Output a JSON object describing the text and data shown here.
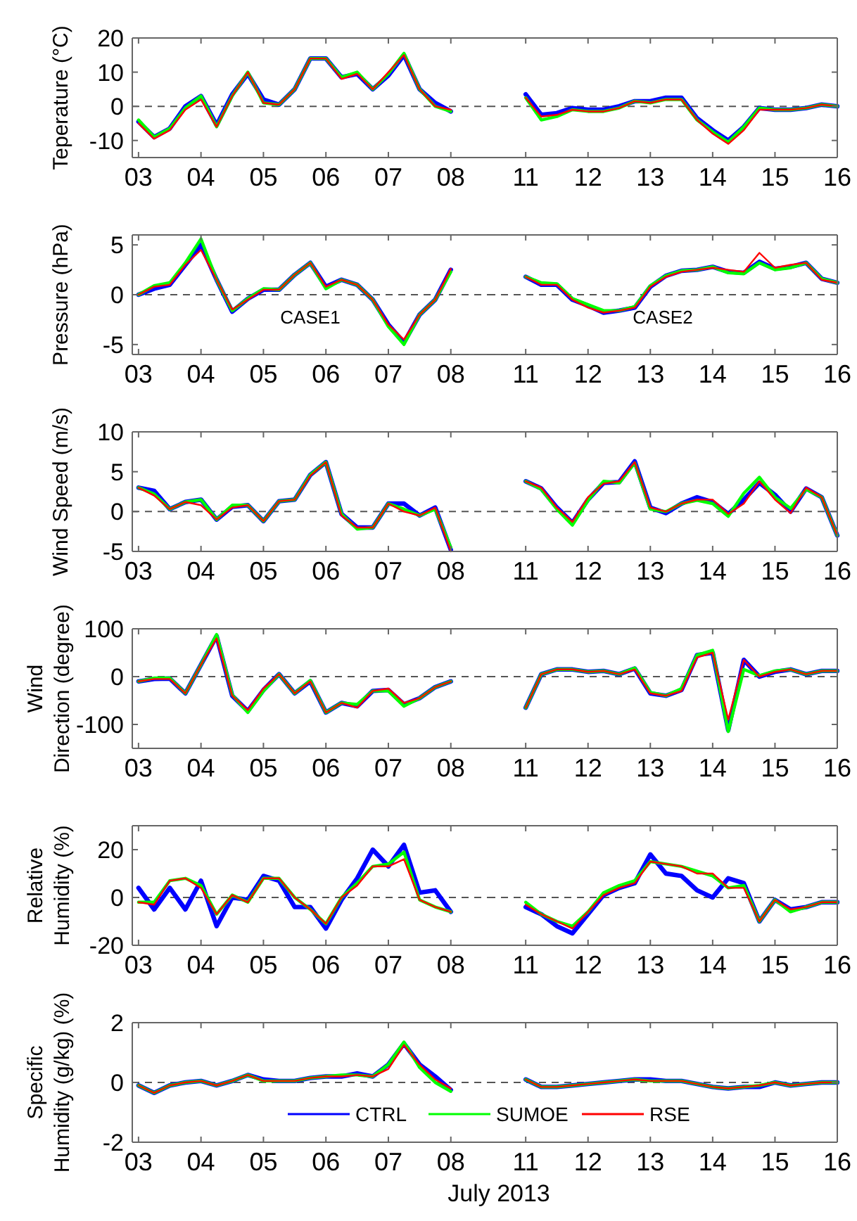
{
  "chart_data": [
    {
      "type": "line",
      "ylabel": "Teperature (°C)",
      "x": [
        3,
        3.25,
        3.5,
        3.75,
        4,
        4.25,
        4.5,
        4.75,
        5,
        5.25,
        5.5,
        5.75,
        6,
        6.25,
        6.5,
        6.75,
        7,
        7.25,
        7.5,
        7.75,
        8
      ],
      "xlim": [
        2.9,
        8.6
      ],
      "xticks": [
        {
          "value": 3,
          "label": "03"
        },
        {
          "value": 4,
          "label": "04"
        },
        {
          "value": 5,
          "label": "05"
        },
        {
          "value": 6,
          "label": "06"
        },
        {
          "value": 7,
          "label": "07"
        },
        {
          "value": 8,
          "label": "08"
        }
      ],
      "ylim": [
        -15,
        20
      ],
      "yticks": [
        -10,
        0,
        10,
        20
      ],
      "ref_lines": [
        {
          "axis": "y",
          "value": 0,
          "line_style": "dashed",
          "color": "#555555"
        }
      ],
      "series": [
        {
          "color": "#0000ff",
          "values": [
            -4.5,
            -9,
            -6.5,
            0,
            3,
            -5.5,
            3.5,
            9.5,
            2,
            0.5,
            5,
            14,
            14,
            8.5,
            9.5,
            5,
            9,
            15,
            5,
            1,
            -1.5
          ]
        },
        {
          "color": "#00ff00",
          "values": [
            -4,
            -9,
            -6.5,
            -0.5,
            3,
            -6,
            3,
            10,
            1,
            0.5,
            5,
            14,
            14,
            8.5,
            10,
            5,
            9.5,
            15.5,
            5,
            0,
            -1.5
          ]
        },
        {
          "color": "#ff0000",
          "values": [
            -5,
            -9.5,
            -7,
            -1,
            2,
            -6,
            3,
            10,
            1,
            0.5,
            5,
            14,
            14,
            8,
            9.5,
            5,
            10,
            15,
            5,
            0,
            -1
          ]
        }
      ]
    },
    {
      "type": "line",
      "x": [
        11,
        11.25,
        11.5,
        11.75,
        12,
        12.25,
        12.5,
        12.75,
        13,
        13.25,
        13.5,
        13.75,
        14,
        14.25,
        14.5,
        14.75,
        15,
        15.25,
        15.5,
        15.75,
        16
      ],
      "xlim": [
        10.4,
        16
      ],
      "xticks": [
        11,
        12,
        13,
        14,
        15,
        16
      ],
      "ylim": [
        -15,
        20
      ],
      "yticks": [
        -10,
        0,
        10,
        20
      ],
      "tick_labels": "x",
      "ref_lines": [
        {
          "axis": "y",
          "value": 0,
          "line_style": "dashed",
          "color": "#555555"
        }
      ],
      "series": [
        {
          "color": "#0000ff",
          "values": [
            3.5,
            -2.5,
            -2,
            -0.5,
            -1,
            -1,
            0,
            1.5,
            1.5,
            2.5,
            2.5,
            -3.5,
            -7,
            -10,
            -6,
            -0.5,
            -1,
            -1,
            -0.5,
            0.5,
            0
          ]
        },
        {
          "color": "#00ff00",
          "values": [
            2.5,
            -4,
            -3,
            -1,
            -1.5,
            -1.5,
            -0.5,
            1.5,
            1,
            2,
            2,
            -4,
            -7.5,
            -10.5,
            -6,
            -0.5,
            -1,
            -1,
            -0.5,
            0.5,
            0
          ]
        },
        {
          "color": "#ff0000",
          "values": [
            2.5,
            -3,
            -2.5,
            -1,
            -1.5,
            -1.5,
            -0.5,
            1.5,
            1,
            2,
            2,
            -4,
            -8,
            -11,
            -7,
            -1,
            -1,
            -1,
            -0.5,
            0.5,
            0
          ]
        }
      ]
    },
    {
      "type": "line",
      "ylabel": "Pressure (hPa)",
      "annotations": [
        "CASE1"
      ],
      "x": [
        3,
        3.25,
        3.5,
        3.75,
        4,
        4.25,
        4.5,
        4.75,
        5,
        5.25,
        5.5,
        5.75,
        6,
        6.25,
        6.5,
        6.75,
        7,
        7.25,
        7.5,
        7.75,
        8
      ],
      "xlim": [
        2.9,
        8.6
      ],
      "xticks": [
        {
          "value": 3,
          "label": "03"
        },
        {
          "value": 4,
          "label": "04"
        },
        {
          "value": 5,
          "label": "05"
        },
        {
          "value": 6,
          "label": "06"
        },
        {
          "value": 7,
          "label": "07"
        },
        {
          "value": 8,
          "label": "08"
        }
      ],
      "ylim": [
        -6,
        6
      ],
      "yticks": [
        -5,
        0,
        5
      ],
      "ref_lines": [
        {
          "axis": "y",
          "value": 0,
          "line_style": "dashed",
          "color": "#555555"
        }
      ],
      "series": [
        {
          "color": "#0000ff",
          "values": [
            0,
            0.6,
            1,
            3,
            5,
            1.5,
            -1.7,
            -0.4,
            0.5,
            0.5,
            2,
            3.2,
            0.8,
            1.5,
            1,
            -0.5,
            -3,
            -4.8,
            -2,
            -0.5,
            2.5
          ]
        },
        {
          "color": "#00ff00",
          "values": [
            0,
            0.9,
            1.2,
            3.2,
            5.6,
            1.5,
            -1.6,
            -0.4,
            0.6,
            0.5,
            2,
            3.2,
            0.6,
            1.5,
            1,
            -0.5,
            -3.2,
            -5,
            -2,
            -0.5,
            2.3
          ]
        },
        {
          "color": "#ff0000",
          "values": [
            0,
            0.8,
            1,
            3,
            4.5,
            1.5,
            -1.5,
            -0.5,
            0.5,
            0.5,
            2,
            3.2,
            0.8,
            1.5,
            1,
            -0.5,
            -3,
            -4.5,
            -2,
            -0.5,
            2.6
          ]
        }
      ]
    },
    {
      "type": "line",
      "annotations": [
        "CASE2"
      ],
      "x": [
        11,
        11.25,
        11.5,
        11.75,
        12,
        12.25,
        12.5,
        12.75,
        13,
        13.25,
        13.5,
        13.75,
        14,
        14.25,
        14.5,
        14.75,
        15,
        15.25,
        15.5,
        15.75,
        16
      ],
      "xlim": [
        10.4,
        16
      ],
      "xticks": [
        11,
        12,
        13,
        14,
        15,
        16
      ],
      "ylim": [
        -6,
        6
      ],
      "yticks": [
        -5,
        0,
        5
      ],
      "tick_labels": "x",
      "ref_lines": [
        {
          "axis": "y",
          "value": 0,
          "line_style": "dashed",
          "color": "#555555"
        }
      ],
      "series": [
        {
          "color": "#0000ff",
          "values": [
            1.8,
            1,
            1,
            -0.5,
            -1.1,
            -1.8,
            -1.6,
            -1.3,
            0.8,
            1.9,
            2.4,
            2.5,
            2.8,
            2.3,
            2.2,
            3.3,
            2.6,
            2.8,
            3.2,
            1.6,
            1.2
          ]
        },
        {
          "color": "#00ff00",
          "values": [
            1.8,
            1.2,
            1.1,
            -0.4,
            -1,
            -1.6,
            -1.6,
            -1.2,
            0.9,
            1.9,
            2.4,
            2.5,
            2.8,
            2.2,
            2.1,
            3.2,
            2.5,
            2.7,
            3.2,
            1.6,
            1.2
          ]
        },
        {
          "color": "#ff0000",
          "values": [
            1.8,
            1,
            1,
            -0.5,
            -1.3,
            -1.8,
            -1.6,
            -1.3,
            0.8,
            1.8,
            2.3,
            2.5,
            2.7,
            2.5,
            2.3,
            4.2,
            2.7,
            3,
            3.2,
            1.5,
            1.2
          ]
        }
      ]
    },
    {
      "type": "line",
      "ylabel": "Wind Speed (m/s)",
      "x": [
        3,
        3.25,
        3.5,
        3.75,
        4,
        4.25,
        4.5,
        4.75,
        5,
        5.25,
        5.5,
        5.75,
        6,
        6.25,
        6.5,
        6.75,
        7,
        7.25,
        7.5,
        7.75,
        8
      ],
      "xlim": [
        2.9,
        8.6
      ],
      "xticks": [
        {
          "value": 3,
          "label": "03"
        },
        {
          "value": 4,
          "label": "04"
        },
        {
          "value": 5,
          "label": "05"
        },
        {
          "value": 6,
          "label": "06"
        },
        {
          "value": 7,
          "label": "07"
        },
        {
          "value": 8,
          "label": "08"
        }
      ],
      "ylim": [
        -5,
        10
      ],
      "yticks": [
        -5,
        0,
        5,
        10
      ],
      "ref_lines": [
        {
          "axis": "y",
          "value": 0,
          "line_style": "dashed",
          "color": "#555555"
        }
      ],
      "series": [
        {
          "color": "#0000ff",
          "values": [
            3,
            2.6,
            0.3,
            1.2,
            1.5,
            -1,
            0.6,
            0.8,
            -1.2,
            1.3,
            1.5,
            4.6,
            6.2,
            -0.3,
            -2,
            -2,
            1,
            1,
            -0.5,
            0.5,
            -4.8
          ]
        },
        {
          "color": "#00ff00",
          "values": [
            3,
            2.2,
            0.3,
            1.2,
            1.5,
            -1,
            0.8,
            0.8,
            -1.2,
            1.3,
            1.5,
            4.6,
            6.2,
            -0.3,
            -2.2,
            -2,
            1,
            0.3,
            -0.5,
            0.3,
            -4.5
          ]
        },
        {
          "color": "#ff0000",
          "values": [
            3,
            2,
            0.3,
            1.2,
            0.8,
            -1,
            0.5,
            0.8,
            -1.2,
            1.3,
            1.5,
            4.5,
            6.2,
            -0.5,
            -2,
            -2,
            1,
            0,
            -0.5,
            0.5,
            -5
          ]
        }
      ]
    },
    {
      "type": "line",
      "x": [
        11,
        11.25,
        11.5,
        11.75,
        12,
        12.25,
        12.5,
        12.75,
        13,
        13.25,
        13.5,
        13.75,
        14,
        14.25,
        14.5,
        14.75,
        15,
        15.25,
        15.5,
        15.75,
        16
      ],
      "xlim": [
        10.4,
        16
      ],
      "xticks": [
        11,
        12,
        13,
        14,
        15,
        16
      ],
      "ylim": [
        -5,
        10
      ],
      "yticks": [
        -5,
        0,
        5,
        10
      ],
      "tick_labels": "x",
      "ref_lines": [
        {
          "axis": "y",
          "value": 0,
          "line_style": "dashed",
          "color": "#555555"
        }
      ],
      "series": [
        {
          "color": "#0000ff",
          "values": [
            3.8,
            2.9,
            0.5,
            -1.4,
            1.5,
            3.6,
            3.7,
            6.3,
            0.5,
            -0.2,
            1,
            1.8,
            1.2,
            -0.3,
            1.5,
            3.6,
            2.1,
            0,
            2.9,
            1.8,
            -3
          ]
        },
        {
          "color": "#00ff00",
          "values": [
            3.8,
            2.8,
            0.3,
            -1.7,
            1.4,
            3.8,
            3.6,
            6.1,
            0.3,
            0,
            1,
            1.4,
            1,
            -0.6,
            2.3,
            4.3,
            1.8,
            0.4,
            2.8,
            1.8,
            -3
          ]
        },
        {
          "color": "#ff0000",
          "values": [
            3.8,
            3,
            0.5,
            -1.3,
            1.8,
            3.5,
            3.8,
            6.2,
            0.5,
            0,
            1,
            1.5,
            1.5,
            -0.3,
            1,
            3.8,
            1.5,
            -0.2,
            3,
            1.8,
            -3
          ]
        }
      ]
    },
    {
      "type": "line",
      "ylabel": "Wind\nDirection (degree)",
      "x": [
        3,
        3.25,
        3.5,
        3.75,
        4,
        4.25,
        4.5,
        4.75,
        5,
        5.25,
        5.5,
        5.75,
        6,
        6.25,
        6.5,
        6.75,
        7,
        7.25,
        7.5,
        7.75,
        8
      ],
      "xlim": [
        2.9,
        8.6
      ],
      "xticks": [
        {
          "value": 3,
          "label": "03"
        },
        {
          "value": 4,
          "label": "04"
        },
        {
          "value": 5,
          "label": "05"
        },
        {
          "value": 6,
          "label": "06"
        },
        {
          "value": 7,
          "label": "07"
        },
        {
          "value": 8,
          "label": "08"
        }
      ],
      "ylim": [
        -150,
        100
      ],
      "yticks": [
        -100,
        0,
        100
      ],
      "ref_lines": [
        {
          "axis": "y",
          "value": 0,
          "line_style": "dashed",
          "color": "#555555"
        }
      ],
      "series": [
        {
          "color": "#0000ff",
          "values": [
            -10,
            -5,
            -4,
            -35,
            25,
            85,
            -40,
            -72,
            -28,
            5,
            -35,
            -10,
            -75,
            -55,
            -62,
            -30,
            -28,
            -58,
            -45,
            -22,
            -10
          ]
        },
        {
          "color": "#00ff00",
          "values": [
            -10,
            -3,
            -3,
            -35,
            25,
            88,
            -38,
            -75,
            -30,
            5,
            -35,
            -8,
            -75,
            -55,
            -58,
            -30,
            -30,
            -62,
            -45,
            -22,
            -10
          ]
        },
        {
          "color": "#ff0000",
          "values": [
            -10,
            -5,
            -5,
            -35,
            25,
            80,
            -40,
            -70,
            -25,
            5,
            -35,
            -10,
            -75,
            -55,
            -65,
            -30,
            -25,
            -55,
            -45,
            -22,
            -10
          ]
        }
      ]
    },
    {
      "type": "line",
      "x": [
        11,
        11.25,
        11.5,
        11.75,
        12,
        12.25,
        12.5,
        12.75,
        13,
        13.25,
        13.5,
        13.75,
        14,
        14.25,
        14.5,
        14.75,
        15,
        15.25,
        15.5,
        15.75,
        16
      ],
      "xlim": [
        10.4,
        16
      ],
      "xticks": [
        11,
        12,
        13,
        14,
        15,
        16
      ],
      "ylim": [
        -150,
        100
      ],
      "yticks": [
        -100,
        0,
        100
      ],
      "tick_labels": "x",
      "ref_lines": [
        {
          "axis": "y",
          "value": 0,
          "line_style": "dashed",
          "color": "#555555"
        }
      ],
      "series": [
        {
          "color": "#0000ff",
          "values": [
            -65,
            5,
            15,
            15,
            10,
            12,
            5,
            17,
            -35,
            -40,
            -28,
            45,
            50,
            -112,
            35,
            0,
            10,
            15,
            5,
            12,
            12
          ]
        },
        {
          "color": "#00ff00",
          "values": [
            -65,
            5,
            15,
            15,
            10,
            12,
            5,
            18,
            -33,
            -40,
            -25,
            45,
            55,
            -115,
            15,
            2,
            12,
            15,
            5,
            12,
            12
          ]
        },
        {
          "color": "#ff0000",
          "values": [
            -65,
            5,
            15,
            15,
            10,
            12,
            5,
            15,
            -35,
            -40,
            -30,
            40,
            50,
            -90,
            35,
            0,
            10,
            15,
            5,
            12,
            12
          ]
        }
      ]
    },
    {
      "type": "line",
      "ylabel": "Relative\nHumidity (%)",
      "x": [
        3,
        3.25,
        3.5,
        3.75,
        4,
        4.25,
        4.5,
        4.75,
        5,
        5.25,
        5.5,
        5.75,
        6,
        6.25,
        6.5,
        6.75,
        7,
        7.25,
        7.5,
        7.75,
        8
      ],
      "xlim": [
        2.9,
        8.6
      ],
      "xticks": [
        {
          "value": 3,
          "label": "03"
        },
        {
          "value": 4,
          "label": "04"
        },
        {
          "value": 5,
          "label": "05"
        },
        {
          "value": 6,
          "label": "06"
        },
        {
          "value": 7,
          "label": "07"
        },
        {
          "value": 8,
          "label": "08"
        }
      ],
      "ylim": [
        -20,
        30
      ],
      "yticks": [
        -20,
        0,
        20
      ],
      "ref_lines": [
        {
          "axis": "y",
          "value": 0,
          "line_style": "dashed",
          "color": "#555555"
        }
      ],
      "series": [
        {
          "color": "#0000ff",
          "values": [
            4,
            -5,
            4,
            -5,
            7,
            -12,
            0,
            -1,
            9,
            7,
            -4,
            -4,
            -13,
            -1,
            8,
            20,
            13,
            22,
            2,
            3,
            -6
          ]
        },
        {
          "color": "#00ff00",
          "values": [
            -2,
            -2,
            7,
            8,
            5,
            -7,
            1,
            -2,
            8,
            8,
            0,
            -5,
            -11,
            0,
            6,
            13,
            14,
            19,
            -1,
            -4,
            -6
          ]
        },
        {
          "color": "#ff0000",
          "values": [
            -2,
            -3,
            7,
            8,
            4,
            -7,
            1,
            -2,
            8,
            8,
            0,
            -5,
            -11,
            0,
            5,
            13,
            13,
            16,
            -1,
            -4,
            -6
          ]
        }
      ]
    },
    {
      "type": "line",
      "x": [
        11,
        11.25,
        11.5,
        11.75,
        12,
        12.25,
        12.5,
        12.75,
        13,
        13.25,
        13.5,
        13.75,
        14,
        14.25,
        14.5,
        14.75,
        15,
        15.25,
        15.5,
        15.75,
        16
      ],
      "xlim": [
        10.4,
        16
      ],
      "xticks": [
        11,
        12,
        13,
        14,
        15,
        16
      ],
      "ylim": [
        -20,
        30
      ],
      "yticks": [
        -20,
        0,
        20
      ],
      "tick_labels": "x",
      "ref_lines": [
        {
          "axis": "y",
          "value": 0,
          "line_style": "dashed",
          "color": "#555555"
        }
      ],
      "series": [
        {
          "color": "#0000ff",
          "values": [
            -4,
            -7,
            -12,
            -15,
            -7,
            1,
            4,
            6,
            18,
            10,
            9,
            3,
            0,
            8,
            6,
            -10,
            -1,
            -5,
            -4,
            -2,
            -2
          ]
        },
        {
          "color": "#00ff00",
          "values": [
            -2,
            -7,
            -10,
            -12,
            -6,
            2,
            5,
            7,
            15,
            14,
            13,
            11,
            9,
            4,
            5,
            -10,
            -1,
            -6,
            -4,
            -2,
            -2
          ]
        },
        {
          "color": "#ff0000",
          "values": [
            -3,
            -7,
            -10,
            -13,
            -6,
            1,
            4,
            6,
            15,
            14,
            13,
            10,
            10,
            4,
            4,
            -10,
            -1,
            -5,
            -4,
            -2,
            -2
          ]
        }
      ]
    },
    {
      "type": "line",
      "ylabel": "Specific\nHumidity (g/kg) (%)",
      "xlabel": "July 2013",
      "legend": "bottom",
      "x": [
        3,
        3.25,
        3.5,
        3.75,
        4,
        4.25,
        4.5,
        4.75,
        5,
        5.25,
        5.5,
        5.75,
        6,
        6.25,
        6.5,
        6.75,
        7,
        7.25,
        7.5,
        7.75,
        8
      ],
      "xlim": [
        2.9,
        8.6
      ],
      "xticks": [
        {
          "value": 3,
          "label": "03"
        },
        {
          "value": 4,
          "label": "04"
        },
        {
          "value": 5,
          "label": "05"
        },
        {
          "value": 6,
          "label": "06"
        },
        {
          "value": 7,
          "label": "07"
        },
        {
          "value": 8,
          "label": "08"
        }
      ],
      "ylim": [
        -2,
        2
      ],
      "yticks": [
        -2,
        0,
        2
      ],
      "ref_lines": [
        {
          "axis": "y",
          "value": 0,
          "line_style": "dashed",
          "color": "#555555"
        }
      ],
      "series": [
        {
          "name": "CTRL",
          "color": "#0000ff",
          "values": [
            -0.1,
            -0.35,
            -0.1,
            0,
            0.05,
            -0.1,
            0.05,
            0.25,
            0.1,
            0.05,
            0.05,
            0.15,
            0.2,
            0.2,
            0.3,
            0.2,
            0.6,
            1.3,
            0.6,
            0.2,
            -0.25
          ]
        },
        {
          "name": "SUMOE",
          "color": "#00ff00",
          "values": [
            -0.1,
            -0.35,
            -0.1,
            0,
            0.05,
            -0.1,
            0.05,
            0.25,
            0.05,
            0.05,
            0.05,
            0.15,
            0.2,
            0.25,
            0.25,
            0.2,
            0.6,
            1.35,
            0.5,
            0,
            -0.3
          ]
        },
        {
          "name": "RSE",
          "color": "#ff0000",
          "values": [
            -0.1,
            -0.35,
            -0.1,
            0,
            0.05,
            -0.1,
            0.05,
            0.25,
            0.05,
            0.05,
            0.05,
            0.15,
            0.2,
            0.2,
            0.25,
            0.2,
            0.45,
            1.25,
            0.6,
            0.1,
            -0.2
          ]
        }
      ]
    },
    {
      "type": "line",
      "x": [
        11,
        11.25,
        11.5,
        11.75,
        12,
        12.25,
        12.5,
        12.75,
        13,
        13.25,
        13.5,
        13.75,
        14,
        14.25,
        14.5,
        14.75,
        15,
        15.25,
        15.5,
        15.75,
        16
      ],
      "xlim": [
        10.4,
        16
      ],
      "xticks": [
        11,
        12,
        13,
        14,
        15,
        16
      ],
      "ylim": [
        -2,
        2
      ],
      "yticks": [
        -2,
        0,
        2
      ],
      "tick_labels": "x",
      "ref_lines": [
        {
          "axis": "y",
          "value": 0,
          "line_style": "dashed",
          "color": "#555555"
        }
      ],
      "series": [
        {
          "color": "#0000ff",
          "values": [
            0.1,
            -0.15,
            -0.15,
            -0.1,
            -0.05,
            0,
            0.05,
            0.1,
            0.1,
            0.05,
            0.05,
            -0.05,
            -0.15,
            -0.2,
            -0.15,
            -0.15,
            0,
            -0.1,
            -0.05,
            0,
            0
          ]
        },
        {
          "color": "#00ff00",
          "values": [
            0.1,
            -0.15,
            -0.15,
            -0.1,
            -0.05,
            0,
            0.05,
            0.1,
            0.05,
            0.05,
            0.05,
            -0.05,
            -0.15,
            -0.2,
            -0.15,
            -0.1,
            0,
            -0.1,
            -0.05,
            0,
            0
          ]
        },
        {
          "color": "#ff0000",
          "values": [
            0.1,
            -0.15,
            -0.15,
            -0.1,
            -0.05,
            0,
            0.05,
            0.1,
            0.05,
            0.05,
            0.05,
            -0.05,
            -0.15,
            -0.2,
            -0.15,
            -0.1,
            0,
            -0.1,
            -0.05,
            0,
            0
          ]
        }
      ]
    }
  ]
}
